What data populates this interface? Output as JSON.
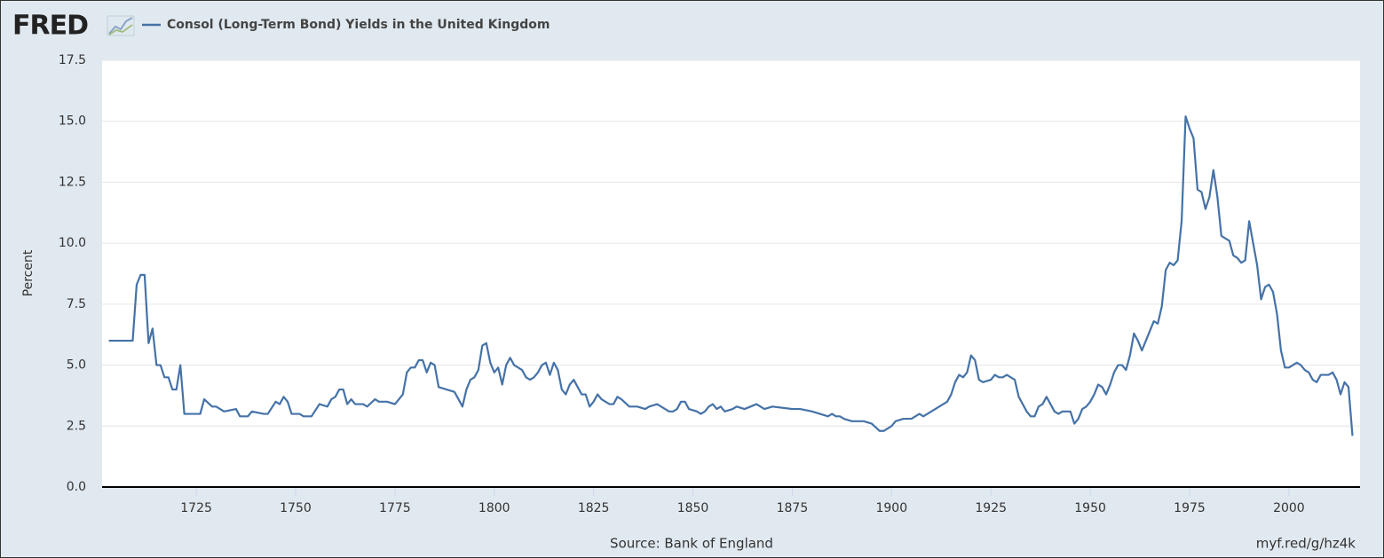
{
  "brand": "FRED",
  "chart_data": {
    "type": "line",
    "title": "Consol (Long-Term Bond) Yields in the United Kingdom",
    "y_label": "Percent",
    "source": "Source: Bank of England",
    "short_url": "myf.red/g/hz4k",
    "x": [
      1703,
      1709,
      1710,
      1711,
      1712,
      1713,
      1714,
      1715,
      1716,
      1717,
      1718,
      1719,
      1720,
      1721,
      1722,
      1726,
      1727,
      1729,
      1730,
      1732,
      1735,
      1736,
      1738,
      1739,
      1742,
      1743,
      1745,
      1746,
      1747,
      1748,
      1749,
      1751,
      1752,
      1754,
      1756,
      1758,
      1759,
      1760,
      1761,
      1762,
      1763,
      1764,
      1765,
      1767,
      1768,
      1770,
      1771,
      1773,
      1775,
      1777,
      1778,
      1779,
      1780,
      1781,
      1782,
      1783,
      1784,
      1785,
      1786,
      1788,
      1790,
      1791,
      1792,
      1793,
      1794,
      1795,
      1796,
      1797,
      1798,
      1799,
      1800,
      1801,
      1802,
      1803,
      1804,
      1805,
      1807,
      1808,
      1809,
      1810,
      1811,
      1812,
      1813,
      1814,
      1815,
      1816,
      1817,
      1818,
      1819,
      1820,
      1821,
      1822,
      1823,
      1824,
      1825,
      1826,
      1827,
      1829,
      1830,
      1831,
      1832,
      1834,
      1836,
      1838,
      1839,
      1841,
      1842,
      1844,
      1845,
      1846,
      1847,
      1848,
      1849,
      1851,
      1852,
      1853,
      1854,
      1855,
      1856,
      1857,
      1858,
      1860,
      1861,
      1863,
      1866,
      1867,
      1868,
      1870,
      1875,
      1877,
      1880,
      1882,
      1884,
      1885,
      1886,
      1887,
      1888,
      1890,
      1893,
      1895,
      1897,
      1898,
      1899,
      1900,
      1901,
      1903,
      1904,
      1905,
      1906,
      1907,
      1908,
      1910,
      1912,
      1914,
      1915,
      1916,
      1917,
      1918,
      1919,
      1920,
      1921,
      1922,
      1923,
      1925,
      1926,
      1927,
      1928,
      1929,
      1930,
      1931,
      1932,
      1933,
      1934,
      1935,
      1936,
      1937,
      1938,
      1939,
      1940,
      1941,
      1942,
      1943,
      1945,
      1946,
      1947,
      1948,
      1949,
      1950,
      1951,
      1952,
      1953,
      1954,
      1955,
      1956,
      1957,
      1958,
      1959,
      1960,
      1961,
      1962,
      1963,
      1964,
      1965,
      1966,
      1967,
      1968,
      1969,
      1970,
      1971,
      1972,
      1973,
      1974,
      1975,
      1976,
      1977,
      1978,
      1979,
      1980,
      1981,
      1982,
      1983,
      1984,
      1985,
      1986,
      1987,
      1988,
      1989,
      1990,
      1991,
      1992,
      1993,
      1994,
      1995,
      1996,
      1997,
      1998,
      1999,
      2000,
      2001,
      2002,
      2003,
      2004,
      2005,
      2006,
      2007,
      2008,
      2009,
      2010,
      2011,
      2012,
      2013,
      2014,
      2015,
      2016
    ],
    "series": [
      {
        "name": "Consol (Long-Term Bond) Yields in the United Kingdom",
        "color": "#4572a7",
        "values": [
          6.0,
          6.0,
          8.3,
          8.7,
          8.7,
          5.9,
          6.5,
          5.0,
          5.0,
          4.5,
          4.5,
          4.0,
          4.0,
          5.0,
          3.0,
          3.0,
          3.6,
          3.3,
          3.3,
          3.1,
          3.2,
          2.9,
          2.9,
          3.1,
          3.0,
          3.0,
          3.5,
          3.4,
          3.7,
          3.5,
          3.0,
          3.0,
          2.9,
          2.9,
          3.4,
          3.3,
          3.6,
          3.7,
          4.0,
          4.0,
          3.4,
          3.6,
          3.4,
          3.4,
          3.3,
          3.6,
          3.5,
          3.5,
          3.4,
          3.8,
          4.7,
          4.9,
          4.9,
          5.2,
          5.2,
          4.7,
          5.1,
          5.0,
          4.1,
          4.0,
          3.9,
          3.6,
          3.3,
          4.0,
          4.4,
          4.5,
          4.8,
          5.8,
          5.9,
          5.1,
          4.7,
          4.9,
          4.2,
          5.0,
          5.3,
          5.0,
          4.8,
          4.5,
          4.4,
          4.5,
          4.7,
          5.0,
          5.1,
          4.6,
          5.1,
          4.8,
          4.0,
          3.8,
          4.2,
          4.4,
          4.1,
          3.8,
          3.8,
          3.3,
          3.5,
          3.8,
          3.6,
          3.4,
          3.4,
          3.7,
          3.6,
          3.3,
          3.3,
          3.2,
          3.3,
          3.4,
          3.3,
          3.1,
          3.1,
          3.2,
          3.5,
          3.5,
          3.2,
          3.1,
          3.0,
          3.1,
          3.3,
          3.4,
          3.2,
          3.3,
          3.1,
          3.2,
          3.3,
          3.2,
          3.4,
          3.3,
          3.2,
          3.3,
          3.2,
          3.2,
          3.1,
          3.0,
          2.9,
          3.0,
          2.9,
          2.9,
          2.8,
          2.7,
          2.7,
          2.6,
          2.3,
          2.3,
          2.4,
          2.5,
          2.7,
          2.8,
          2.8,
          2.8,
          2.9,
          3.0,
          2.9,
          3.1,
          3.3,
          3.5,
          3.8,
          4.3,
          4.6,
          4.5,
          4.7,
          5.4,
          5.2,
          4.4,
          4.3,
          4.4,
          4.6,
          4.5,
          4.5,
          4.6,
          4.5,
          4.4,
          3.7,
          3.4,
          3.1,
          2.9,
          2.9,
          3.3,
          3.4,
          3.7,
          3.4,
          3.1,
          3.0,
          3.1,
          3.1,
          2.6,
          2.8,
          3.2,
          3.3,
          3.5,
          3.8,
          4.2,
          4.1,
          3.8,
          4.2,
          4.7,
          5.0,
          5.0,
          4.8,
          5.4,
          6.3,
          6.0,
          5.6,
          6.0,
          6.4,
          6.8,
          6.7,
          7.4,
          8.9,
          9.2,
          9.1,
          9.3,
          10.9,
          15.2,
          14.7,
          14.3,
          12.2,
          12.1,
          11.4,
          11.9,
          13.0,
          11.9,
          10.3,
          10.2,
          10.1,
          9.5,
          9.4,
          9.2,
          9.3,
          10.9,
          10.0,
          9.1,
          7.7,
          8.2,
          8.3,
          8.0,
          7.1,
          5.6,
          4.9,
          4.9,
          5.0,
          5.1,
          5.0,
          4.8,
          4.7,
          4.4,
          4.3,
          4.6,
          4.6,
          4.6,
          4.7,
          4.4,
          3.8,
          4.3,
          4.1,
          2.1
        ]
      }
    ],
    "xlim": [
      1701.3,
      2017.9
    ],
    "xticks": [
      1725,
      1750,
      1775,
      1800,
      1825,
      1850,
      1875,
      1900,
      1925,
      1950,
      1975,
      2000
    ],
    "ylim": [
      0,
      17.5
    ],
    "yticks": [
      {
        "value": 0,
        "label": "0.0"
      },
      {
        "value": 2.5,
        "label": "2.5"
      },
      {
        "value": 5,
        "label": "5.0"
      },
      {
        "value": 7.5,
        "label": "7.5"
      },
      {
        "value": 10,
        "label": "10.0"
      },
      {
        "value": 12.5,
        "label": "12.5"
      },
      {
        "value": 15,
        "label": "15.0"
      },
      {
        "value": 17.5,
        "label": "17.5"
      }
    ],
    "grid": true
  }
}
